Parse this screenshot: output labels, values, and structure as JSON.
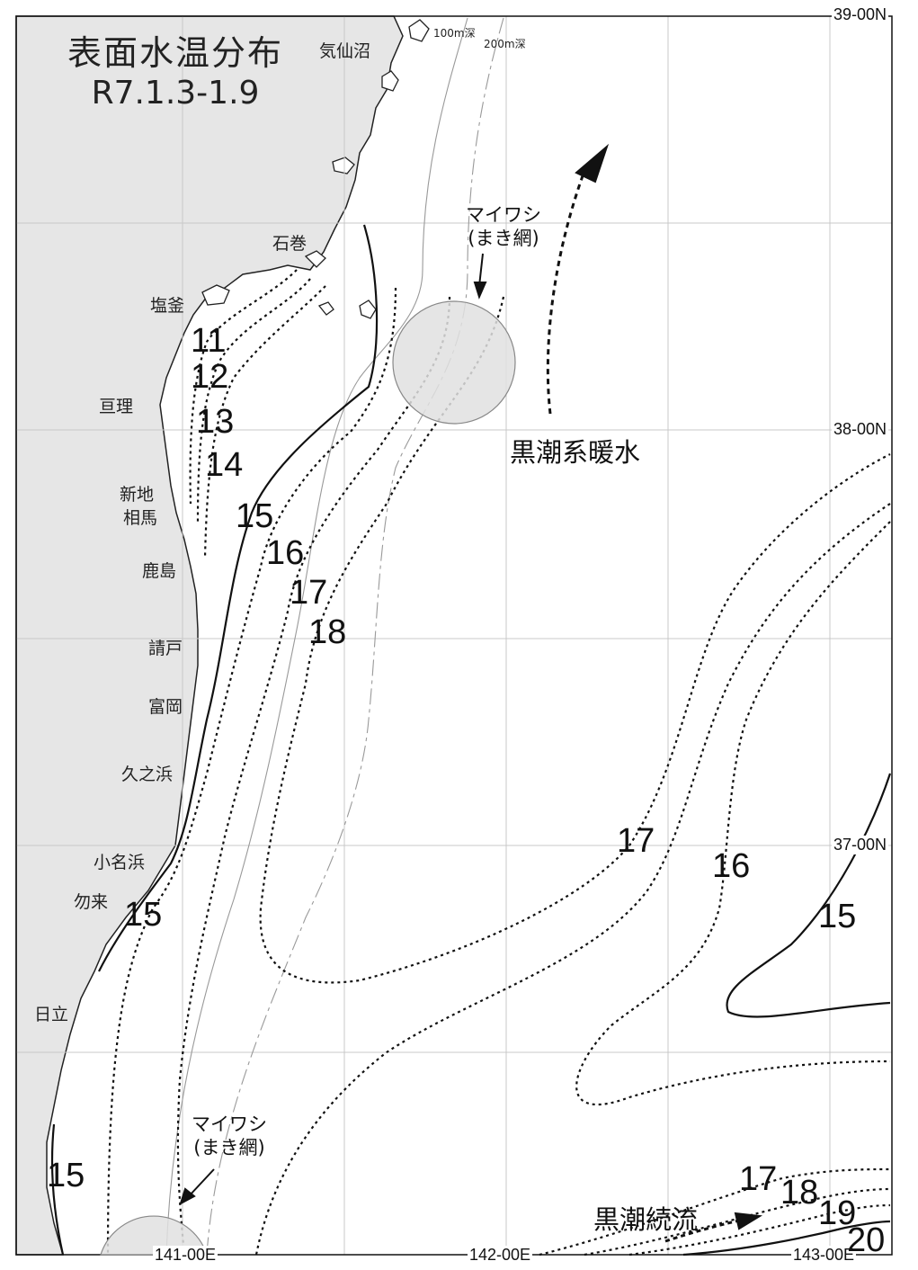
{
  "title": {
    "line1": "表面水温分布",
    "line2": "R7.1.3-1.9"
  },
  "colors": {
    "land": "#e6e6e6",
    "coast": "#222222",
    "grid": "#c8c8c8",
    "fishing_area": "#e0e0e0"
  },
  "coordinates": {
    "lat_39": "39-00N",
    "lat_38": "38-00N",
    "lat_37": "37-00N",
    "lon_141": "141-00E",
    "lon_142": "142-00E",
    "lon_143": "143-00E"
  },
  "depth_lines": {
    "d100": "100m深",
    "d200": "200m深"
  },
  "places": {
    "kesennuma": "気仙沼",
    "ishinomaki": "石巻",
    "shiogama": "塩釜",
    "watari": "亘理",
    "shinchi": "新地",
    "soma": "相馬",
    "kashima": "鹿島",
    "ukedo": "請戸",
    "tomioka": "富岡",
    "hisanohama": "久之浜",
    "onahama": "小名浜",
    "nakoso": "勿来",
    "hitachi": "日立"
  },
  "annotations": {
    "sardine_north": {
      "line1": "マイワシ",
      "line2": "(まき網)"
    },
    "sardine_south": {
      "line1": "マイワシ",
      "line2": "(まき網)"
    },
    "kuroshio_warm": "黒潮系暖水",
    "kuroshio_extension": "黒潮続流"
  },
  "isotherm_labels": {
    "t11": "11",
    "t12": "12",
    "t13": "13",
    "t14": "14",
    "t15_north": "15",
    "t16_north": "16",
    "t17_north": "17",
    "t18_north": "18",
    "t15_nakoso": "15",
    "t15_south": "15",
    "t17_east": "17",
    "t16_east": "16",
    "t15_east": "15",
    "t17_se": "17",
    "t18_se": "18",
    "t19_se": "19",
    "t20_se": "20"
  }
}
